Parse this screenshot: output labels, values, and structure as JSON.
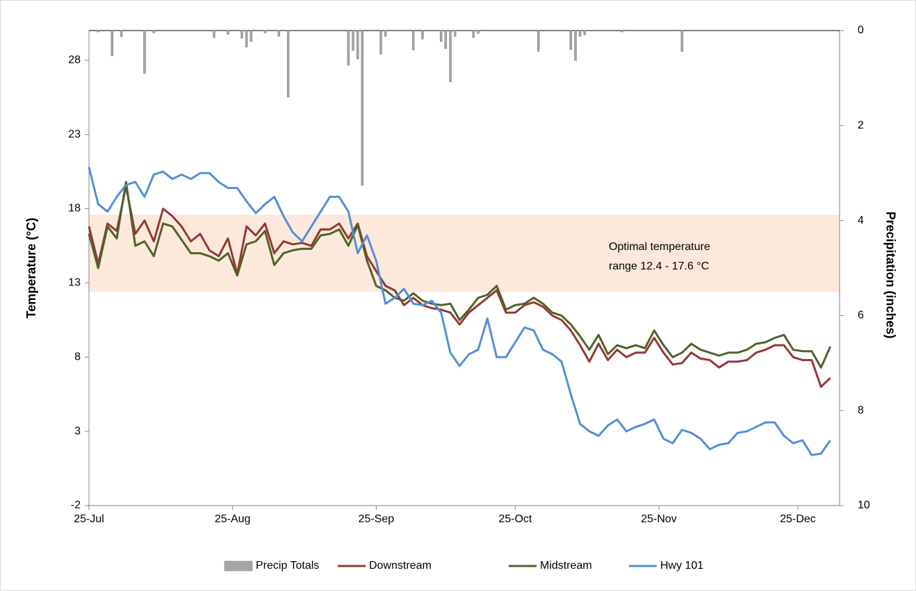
{
  "chart_data": {
    "type": "line",
    "xlim": [
      0,
      162
    ],
    "xticks": [
      {
        "value": 0,
        "label": "25-Jul"
      },
      {
        "value": 31,
        "label": "25-Aug"
      },
      {
        "value": 62,
        "label": "25-Sep"
      },
      {
        "value": 92,
        "label": "25-Oct"
      },
      {
        "value": 123,
        "label": "25-Nov"
      },
      {
        "value": 153,
        "label": "25-Dec"
      }
    ],
    "ylim": [
      -2,
      30
    ],
    "yticks": [
      -2,
      3,
      8,
      13,
      18,
      23,
      28
    ],
    "y2lim": [
      10,
      0
    ],
    "y2ticks": [
      0,
      2,
      4,
      6,
      8,
      10
    ],
    "y_label": "Temperature (°C)",
    "y2_label": "Precipitation (inches)",
    "band": {
      "ymin": 12.4,
      "ymax": 17.6,
      "color": "#fbe5d6"
    },
    "annotation": [
      "Optimal temperature",
      "range 12.4 - 17.6 °C"
    ],
    "x": [
      0,
      2,
      4,
      6,
      8,
      10,
      12,
      14,
      16,
      18,
      20,
      22,
      24,
      26,
      28,
      30,
      32,
      34,
      36,
      38,
      40,
      42,
      44,
      46,
      48,
      50,
      52,
      54,
      56,
      58,
      60,
      62,
      64,
      66,
      68,
      70,
      72,
      74,
      76,
      78,
      80,
      82,
      84,
      86,
      88,
      90,
      92,
      94,
      96,
      98,
      100,
      102,
      104,
      106,
      108,
      110,
      112,
      114,
      116,
      118,
      120,
      122,
      124,
      126,
      128,
      130,
      132,
      134,
      136,
      138,
      140,
      142,
      144,
      146,
      148,
      150,
      152,
      154,
      156,
      158,
      160
    ],
    "series": [
      {
        "name": "Precip Totals",
        "type": "bar",
        "axis": "y2",
        "color": "#a6a6a6",
        "x": [
          2,
          5,
          7,
          12,
          14,
          27,
          30,
          33,
          34,
          35,
          38,
          41,
          43,
          56,
          57,
          58,
          59,
          63,
          64,
          70,
          72,
          76,
          77,
          78,
          79,
          83,
          84,
          97,
          104,
          105,
          106,
          107,
          115,
          128
        ],
        "values": [
          0.03,
          0.53,
          0.13,
          0.9,
          0.05,
          0.15,
          0.08,
          0.16,
          0.35,
          0.23,
          0.05,
          0.12,
          1.4,
          0.73,
          0.42,
          0.6,
          3.26,
          0.5,
          0.12,
          0.41,
          0.18,
          0.23,
          0.38,
          1.08,
          0.12,
          0.15,
          0.06,
          0.44,
          0.4,
          0.63,
          0.12,
          0.09,
          0.03,
          0.44
        ]
      },
      {
        "name": "Downstream",
        "color": "#953735",
        "values": [
          16.8,
          14.3,
          17.0,
          16.5,
          19.5,
          16.3,
          17.2,
          15.8,
          18.0,
          17.5,
          16.8,
          15.8,
          16.3,
          15.2,
          14.8,
          16.0,
          13.6,
          16.8,
          16.2,
          17.0,
          15.0,
          15.8,
          15.6,
          15.7,
          15.5,
          16.6,
          16.6,
          17.0,
          16.0,
          17.0,
          14.8,
          13.8,
          12.8,
          12.5,
          11.5,
          12.0,
          11.5,
          11.3,
          11.2,
          11.0,
          10.2,
          11.0,
          11.5,
          12.0,
          12.5,
          11.0,
          11.0,
          11.5,
          11.7,
          11.4,
          10.8,
          10.5,
          9.8,
          8.8,
          7.7,
          8.9,
          7.8,
          8.5,
          8.0,
          8.3,
          8.3,
          9.3,
          8.3,
          7.5,
          7.6,
          8.3,
          7.9,
          7.8,
          7.3,
          7.7,
          7.7,
          7.8,
          8.3,
          8.5,
          8.8,
          8.8,
          8.0,
          7.8,
          7.8,
          6.0,
          6.6
        ]
      },
      {
        "name": "Midstream",
        "color": "#4f6228",
        "values": [
          16.3,
          14.0,
          16.8,
          16.0,
          19.8,
          15.5,
          15.8,
          14.8,
          17.0,
          16.8,
          15.9,
          15.0,
          15.0,
          14.8,
          14.5,
          15.0,
          13.5,
          15.6,
          15.8,
          16.5,
          14.2,
          15.0,
          15.2,
          15.3,
          15.3,
          16.2,
          16.3,
          16.6,
          15.5,
          16.9,
          14.5,
          12.8,
          12.5,
          12.0,
          11.8,
          12.3,
          11.8,
          11.6,
          11.5,
          11.6,
          10.5,
          11.2,
          12.0,
          12.2,
          12.8,
          11.2,
          11.5,
          11.6,
          12.0,
          11.6,
          11.0,
          10.8,
          10.2,
          9.4,
          8.5,
          9.5,
          8.2,
          8.8,
          8.6,
          8.8,
          8.6,
          9.8,
          8.8,
          8.0,
          8.3,
          8.9,
          8.5,
          8.3,
          8.1,
          8.3,
          8.3,
          8.5,
          8.9,
          9.0,
          9.3,
          9.5,
          8.5,
          8.4,
          8.4,
          7.3,
          8.7
        ]
      },
      {
        "name": "Hwy 101",
        "color": "#558ed5",
        "values": [
          20.8,
          18.3,
          17.8,
          18.8,
          19.6,
          19.8,
          18.8,
          20.3,
          20.5,
          20.0,
          20.3,
          20.0,
          20.4,
          20.4,
          19.8,
          19.4,
          19.4,
          18.5,
          17.7,
          18.3,
          18.8,
          17.5,
          16.4,
          15.8,
          16.8,
          17.8,
          18.8,
          18.8,
          17.8,
          15.0,
          16.2,
          14.5,
          11.6,
          12.0,
          12.6,
          11.6,
          11.5,
          11.8,
          11.0,
          8.3,
          7.4,
          8.2,
          8.5,
          10.6,
          8.0,
          8.0,
          9.0,
          10.0,
          9.8,
          8.5,
          8.2,
          7.7,
          5.5,
          3.5,
          3.0,
          2.7,
          3.4,
          3.8,
          3.0,
          3.3,
          3.5,
          3.8,
          2.5,
          2.2,
          3.1,
          2.9,
          2.5,
          1.8,
          2.1,
          2.2,
          2.9,
          3.0,
          3.3,
          3.6,
          3.6,
          2.7,
          2.2,
          2.4,
          1.4,
          1.5,
          2.4
        ]
      }
    ]
  }
}
